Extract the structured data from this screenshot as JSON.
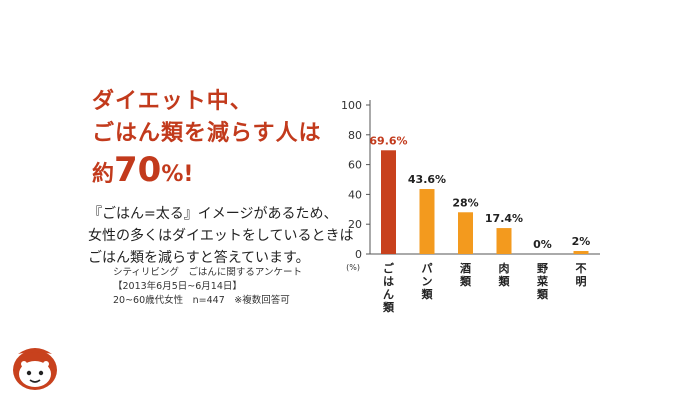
{
  "headline": {
    "line1": "ダイエット中、",
    "line2": "ごはん類を減らす人は",
    "line3_prefix": "約",
    "line3_number": "70",
    "line3_suffix": "%!"
  },
  "body_text": {
    "line1": "『ごはん=太る』イメージがあるため、",
    "line2": "女性の多くはダイエットをしているときは",
    "line3": "ごはん類を減らすと答えています。"
  },
  "source": {
    "line1": "シティリビング　ごはんに関するアンケート",
    "line2": "【2013年6月5日~6月14日】",
    "line3": "20~60歳代女性　n=447　※複数回答可"
  },
  "colors": {
    "accent": "#c23a1c",
    "bar_highlight": "#c8411d",
    "bar_default": "#f39a1e"
  },
  "chart_data": {
    "type": "bar",
    "categories": [
      "ごはん類",
      "パン類",
      "酒類",
      "肉類",
      "野菜類",
      "不明"
    ],
    "values": [
      69.6,
      43.6,
      28,
      17.4,
      0,
      2
    ],
    "value_labels": [
      "69.6%",
      "43.6%",
      "28%",
      "17.4%",
      "0%",
      "2%"
    ],
    "ylim": [
      0,
      100
    ],
    "yticks": [
      "0",
      "20",
      "40",
      "60",
      "80",
      "100"
    ],
    "yunit": "(%)",
    "title": "",
    "xlabel": "",
    "ylabel": "",
    "grid": false
  }
}
